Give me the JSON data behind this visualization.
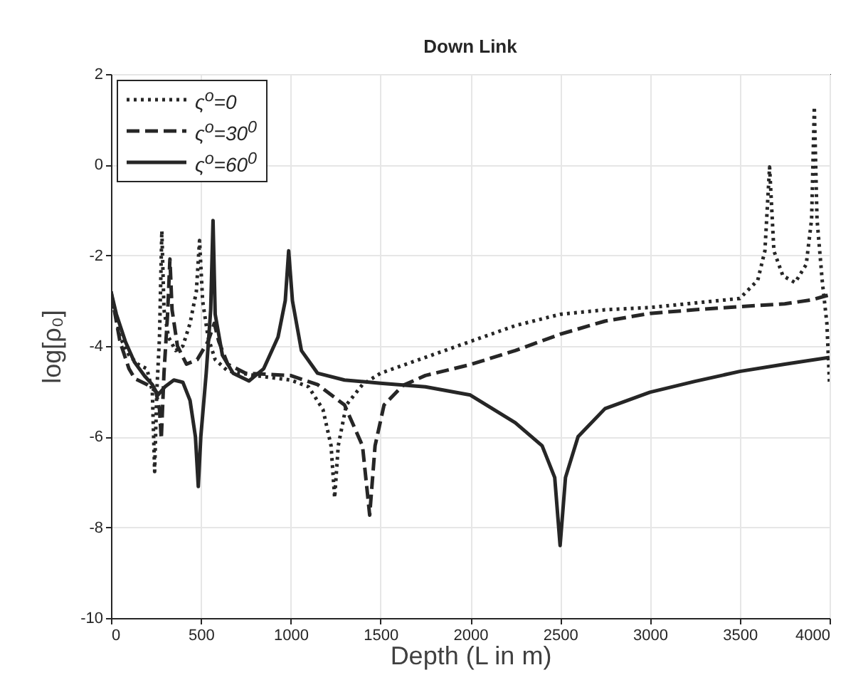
{
  "chart_data": {
    "type": "line",
    "title": "Down Link",
    "xlabel": "Depth (L in m)",
    "ylabel": "log[ρ₀]",
    "xlim": [
      0,
      4000
    ],
    "xticks": [
      0,
      500,
      1000,
      1500,
      2000,
      2500,
      3000,
      3500,
      4000
    ],
    "ylim": [
      -10,
      2
    ],
    "yticks": [
      -10,
      -8,
      -6,
      -4,
      -2,
      0,
      2
    ],
    "grid": true,
    "legend": "top left",
    "series": [
      {
        "name": "ς$^{o}$=0",
        "color": "#262626",
        "line_style": "dotted",
        "x": [
          0,
          50,
          100,
          150,
          200,
          230,
          243,
          255,
          270,
          283,
          295,
          320,
          360,
          400,
          440,
          475,
          493,
          510,
          540,
          580,
          650,
          800,
          1000,
          1100,
          1180,
          1225,
          1245,
          1265,
          1310,
          1400,
          1500,
          1750,
          2000,
          2250,
          2500,
          2750,
          3000,
          3250,
          3500,
          3600,
          3640,
          3666,
          3690,
          3740,
          3808,
          3870,
          3900,
          3915,
          3930,
          3960,
          3985,
          4000
        ],
        "values": [
          -2.8,
          -3.8,
          -4.2,
          -4.4,
          -4.5,
          -5.0,
          -6.77,
          -5.0,
          -3.8,
          -1.46,
          -3.2,
          -3.8,
          -4.1,
          -4.0,
          -3.5,
          -2.8,
          -1.67,
          -3.0,
          -3.8,
          -4.3,
          -4.55,
          -4.65,
          -4.75,
          -4.9,
          -5.4,
          -6.2,
          -7.35,
          -6.2,
          -5.3,
          -4.85,
          -4.6,
          -4.25,
          -3.9,
          -3.55,
          -3.3,
          -3.2,
          -3.15,
          -3.05,
          -2.95,
          -2.55,
          -1.9,
          -0.05,
          -1.9,
          -2.45,
          -2.6,
          -2.2,
          -1.2,
          1.28,
          -1.2,
          -2.6,
          -3.5,
          -4.87
        ]
      },
      {
        "name": "ς$^{o}$=30$^{0}$",
        "color": "#262626",
        "line_style": "dashed",
        "x": [
          0,
          50,
          100,
          133,
          200,
          250,
          270,
          280,
          295,
          315,
          328,
          340,
          370,
          420,
          480,
          540,
          575,
          600,
          650,
          750,
          1000,
          1150,
          1300,
          1400,
          1440,
          1470,
          1520,
          1625,
          1750,
          2000,
          2250,
          2500,
          2750,
          3000,
          3250,
          3500,
          3750,
          3900,
          4000
        ],
        "values": [
          -2.8,
          -3.9,
          -4.5,
          -4.72,
          -4.85,
          -5.0,
          -5.4,
          -6.05,
          -4.6,
          -3.3,
          -2.08,
          -3.2,
          -4.0,
          -4.4,
          -4.3,
          -3.9,
          -3.5,
          -3.9,
          -4.4,
          -4.6,
          -4.65,
          -4.85,
          -5.3,
          -6.2,
          -7.73,
          -6.2,
          -5.3,
          -4.87,
          -4.65,
          -4.41,
          -4.1,
          -3.74,
          -3.45,
          -3.28,
          -3.2,
          -3.13,
          -3.07,
          -2.98,
          -2.87
        ]
      },
      {
        "name": "ς$^{o}$=60$^{0}$",
        "color": "#262626",
        "line_style": "solid",
        "x": [
          0,
          30,
          80,
          130,
          187,
          230,
          261,
          300,
          350,
          400,
          440,
          470,
          486,
          500,
          530,
          555,
          568,
          580,
          620,
          680,
          768,
          850,
          930,
          970,
          989,
          1010,
          1060,
          1150,
          1300,
          1500,
          1750,
          2000,
          2250,
          2400,
          2470,
          2500,
          2530,
          2600,
          2750,
          3000,
          3250,
          3500,
          3750,
          4000
        ],
        "values": [
          -2.8,
          -3.3,
          -3.9,
          -4.35,
          -4.66,
          -4.85,
          -5.08,
          -4.9,
          -4.75,
          -4.8,
          -5.2,
          -6.0,
          -7.1,
          -6.0,
          -4.6,
          -3.2,
          -1.23,
          -3.3,
          -4.2,
          -4.6,
          -4.77,
          -4.5,
          -3.8,
          -3.0,
          -1.9,
          -3.0,
          -4.1,
          -4.6,
          -4.75,
          -4.82,
          -4.9,
          -5.08,
          -5.69,
          -6.2,
          -6.9,
          -8.4,
          -6.9,
          -6.0,
          -5.38,
          -5.02,
          -4.78,
          -4.56,
          -4.4,
          -4.25
        ]
      }
    ]
  }
}
